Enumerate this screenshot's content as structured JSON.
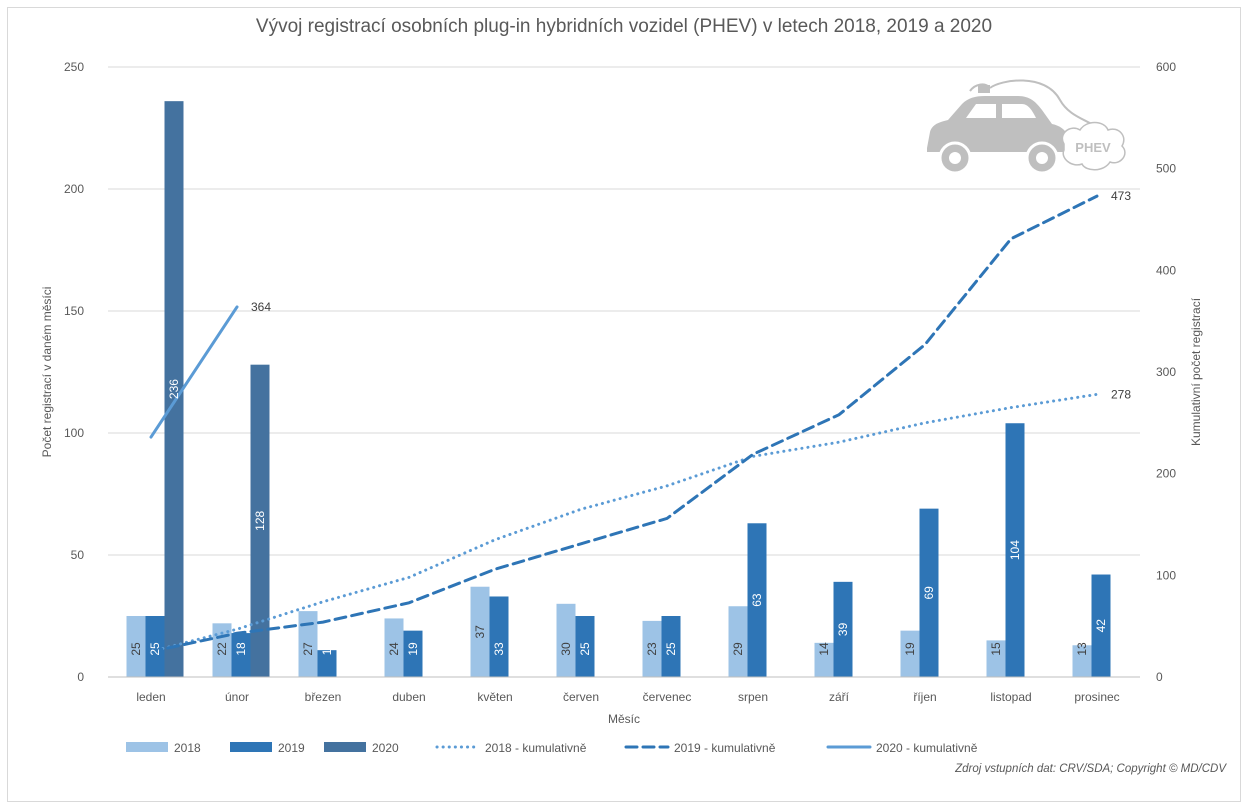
{
  "title": "Vývoj registrací osobních plug-in hybridních vozidel (PHEV) v letech 2018, 2019 a 2020",
  "source": "Zdroj vstupních dat: CRV/SDA; Copyright © MD/CDV",
  "logo_text": "PHEV",
  "chart_data": {
    "type": "bar",
    "title": "Vývoj registrací osobních plug-in hybridních vozidel (PHEV) v letech 2018, 2019 a 2020",
    "xlabel": "Měsíc",
    "ylabel": "Počet registrací v daném měsíci",
    "y2label": "Kumulativní počet registrací",
    "ylim": [
      0,
      250
    ],
    "y2lim": [
      0,
      600
    ],
    "yticks": [
      0,
      50,
      100,
      150,
      200,
      250
    ],
    "y2ticks": [
      0,
      100,
      200,
      300,
      400,
      500,
      600
    ],
    "grid": true,
    "legend_position": "bottom",
    "categories": [
      "leden",
      "únor",
      "březen",
      "duben",
      "květen",
      "červen",
      "červenec",
      "srpen",
      "září",
      "říjen",
      "listopad",
      "prosinec"
    ],
    "bar_series": [
      {
        "name": "2018",
        "color": "#9dc3e6",
        "values": [
          25,
          22,
          27,
          24,
          37,
          30,
          23,
          29,
          14,
          19,
          15,
          13
        ]
      },
      {
        "name": "2019",
        "color": "#2e75b6",
        "values": [
          25,
          18,
          11,
          19,
          33,
          25,
          25,
          63,
          39,
          69,
          104,
          42
        ]
      },
      {
        "name": "2020",
        "color": "#44729f",
        "values": [
          236,
          128
        ]
      }
    ],
    "line_series": [
      {
        "name": "2018 - kumulativně",
        "color": "#5b9bd5",
        "dash": "dotted",
        "axis": "right",
        "values": [
          25,
          47,
          74,
          98,
          135,
          165,
          188,
          217,
          231,
          250,
          265,
          278
        ],
        "end_label": "278"
      },
      {
        "name": "2019 - kumulativně",
        "color": "#2e75b6",
        "dash": "dashed",
        "axis": "right",
        "values": [
          25,
          43,
          54,
          73,
          106,
          131,
          156,
          219,
          258,
          327,
          431,
          473
        ],
        "end_label": "473"
      },
      {
        "name": "2020 - kumulativně",
        "color": "#5b9bd5",
        "dash": "solid",
        "axis": "right",
        "values": [
          236,
          364
        ],
        "end_label": "364"
      }
    ]
  }
}
